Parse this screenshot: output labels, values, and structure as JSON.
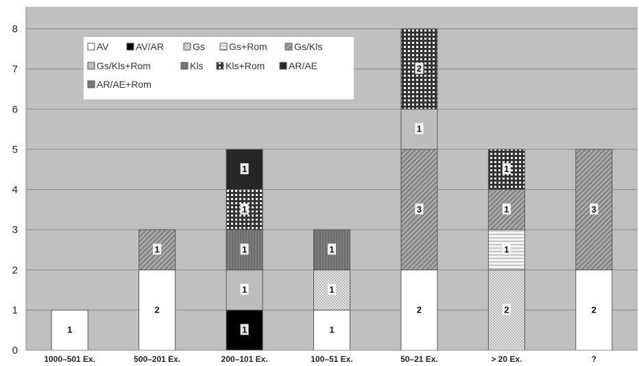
{
  "chart_data": {
    "type": "bar",
    "stacked": true,
    "title": "",
    "xlabel": "",
    "ylabel": "",
    "ylim": [
      0,
      8
    ],
    "yticks": [
      0,
      1,
      2,
      3,
      4,
      5,
      6,
      7,
      8
    ],
    "grid": true,
    "legend_position": "top-left",
    "background_color": "#c0c0c0",
    "categories": [
      "1000–501 Ex.",
      "500–201 Ex.",
      "200–101 Ex.",
      "100–51 Ex.",
      "50–21 Ex.",
      "> 20 Ex.",
      "?"
    ],
    "series": [
      {
        "name": "AV",
        "pattern": "white",
        "values": [
          1,
          2,
          0,
          1,
          2,
          0,
          2
        ]
      },
      {
        "name": "AV/AR",
        "pattern": "black",
        "values": [
          0,
          0,
          1,
          0,
          0,
          0,
          0
        ]
      },
      {
        "name": "Gs",
        "pattern": "dots",
        "values": [
          0,
          0,
          0,
          1,
          0,
          2,
          0
        ]
      },
      {
        "name": "Gs+Rom",
        "pattern": "hlines",
        "values": [
          0,
          0,
          0,
          0,
          0,
          1,
          0
        ]
      },
      {
        "name": "Gs/Kls",
        "pattern": "diagonal",
        "values": [
          0,
          1,
          0,
          0,
          3,
          1,
          3
        ]
      },
      {
        "name": "Gs/Kls+Rom",
        "pattern": "lightgray",
        "values": [
          0,
          0,
          1,
          0,
          1,
          0,
          0
        ]
      },
      {
        "name": "Kls",
        "pattern": "vstripes",
        "values": [
          0,
          0,
          1,
          1,
          0,
          0,
          0
        ]
      },
      {
        "name": "Kls+Rom",
        "pattern": "check",
        "values": [
          0,
          0,
          1,
          0,
          2,
          1,
          0
        ]
      },
      {
        "name": "AR/AE",
        "pattern": "darkgray",
        "values": [
          0,
          0,
          1,
          0,
          0,
          0,
          0
        ]
      },
      {
        "name": "AR/AE+Rom",
        "pattern": "gray",
        "values": [
          0,
          0,
          0,
          0,
          0,
          0,
          0
        ]
      }
    ]
  }
}
